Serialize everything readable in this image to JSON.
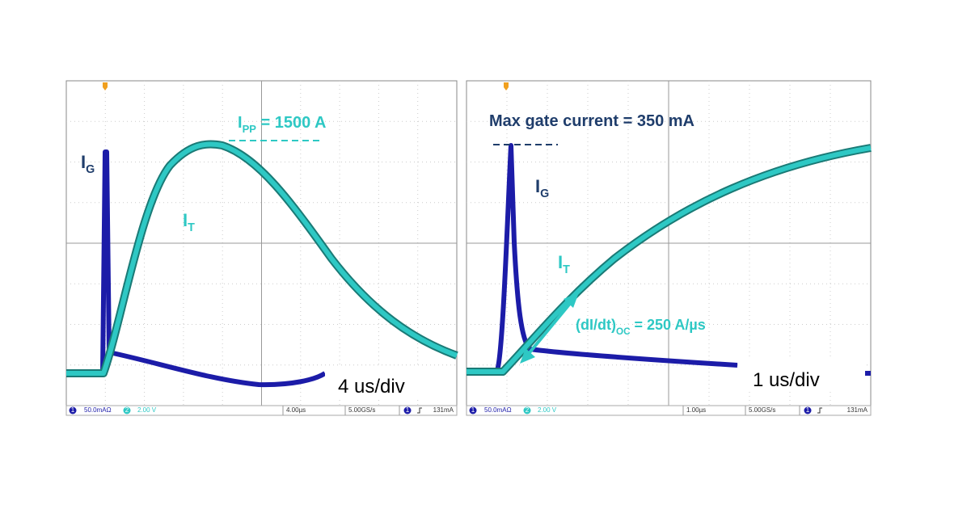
{
  "panels": [
    {
      "gate_label": {
        "main": "I",
        "sub": "G"
      },
      "current_label": {
        "main": "I",
        "sub": "T"
      },
      "annotation": {
        "main": "I",
        "sub": "PP",
        "rest": " = 1500 A"
      },
      "timebase": "4 us/div",
      "status": {
        "ch1_number": "1",
        "ch1": "50.0mAΩ",
        "ch2_number": "2",
        "ch2": "2.00 V",
        "time": "4.00µs",
        "rate": "5.00GS/s",
        "trigger_channel": "1",
        "trigger": "131mA"
      }
    },
    {
      "title": "Max gate current = 350 mA",
      "gate_label": {
        "main": "I",
        "sub": "G"
      },
      "current_label": {
        "main": "I",
        "sub": "T"
      },
      "annotation": {
        "main": "(dI/dt)",
        "sub": "OC",
        "rest": " = 250 A/µs"
      },
      "timebase": "1 us/div",
      "status": {
        "ch1_number": "1",
        "ch1": "50.0mAΩ",
        "ch2_number": "2",
        "ch2": "2.00 V",
        "time": "1.00µs",
        "rate": "5.00GS/s",
        "trigger_channel": "1",
        "trigger": "131mA"
      }
    }
  ]
}
